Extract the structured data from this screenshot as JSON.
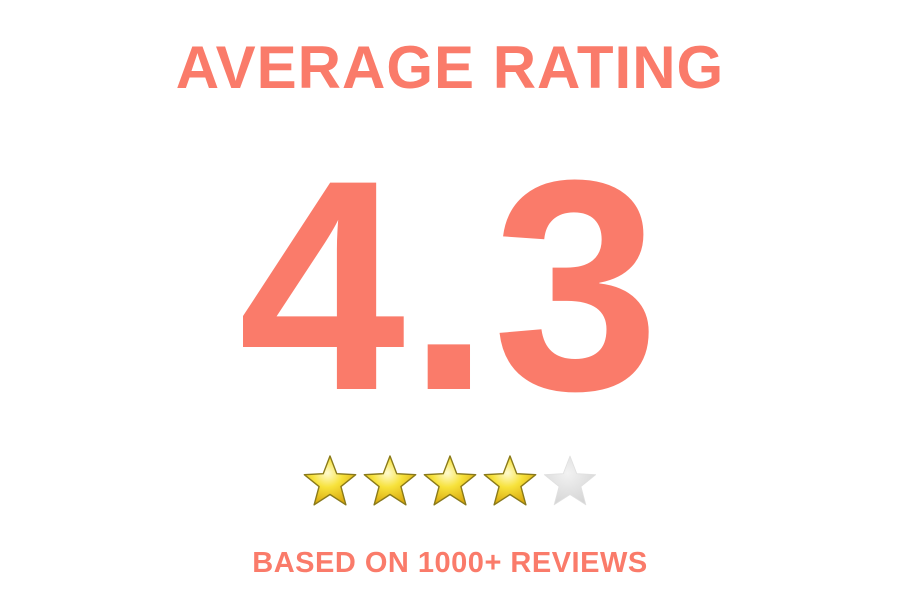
{
  "heading": "AVERAGE RATING",
  "score": "4.3",
  "rating": {
    "value": 4.3,
    "max": 5,
    "filled_stars": 4
  },
  "subtitle": "BASED ON 1000+ REVIEWS",
  "colors": {
    "accent": "#fa7b6a",
    "star_fill": "#f7e23b",
    "star_empty": "#dddddd",
    "background": "#ffffff"
  },
  "icons": {
    "filled": "star-filled-icon",
    "empty": "star-empty-icon"
  }
}
